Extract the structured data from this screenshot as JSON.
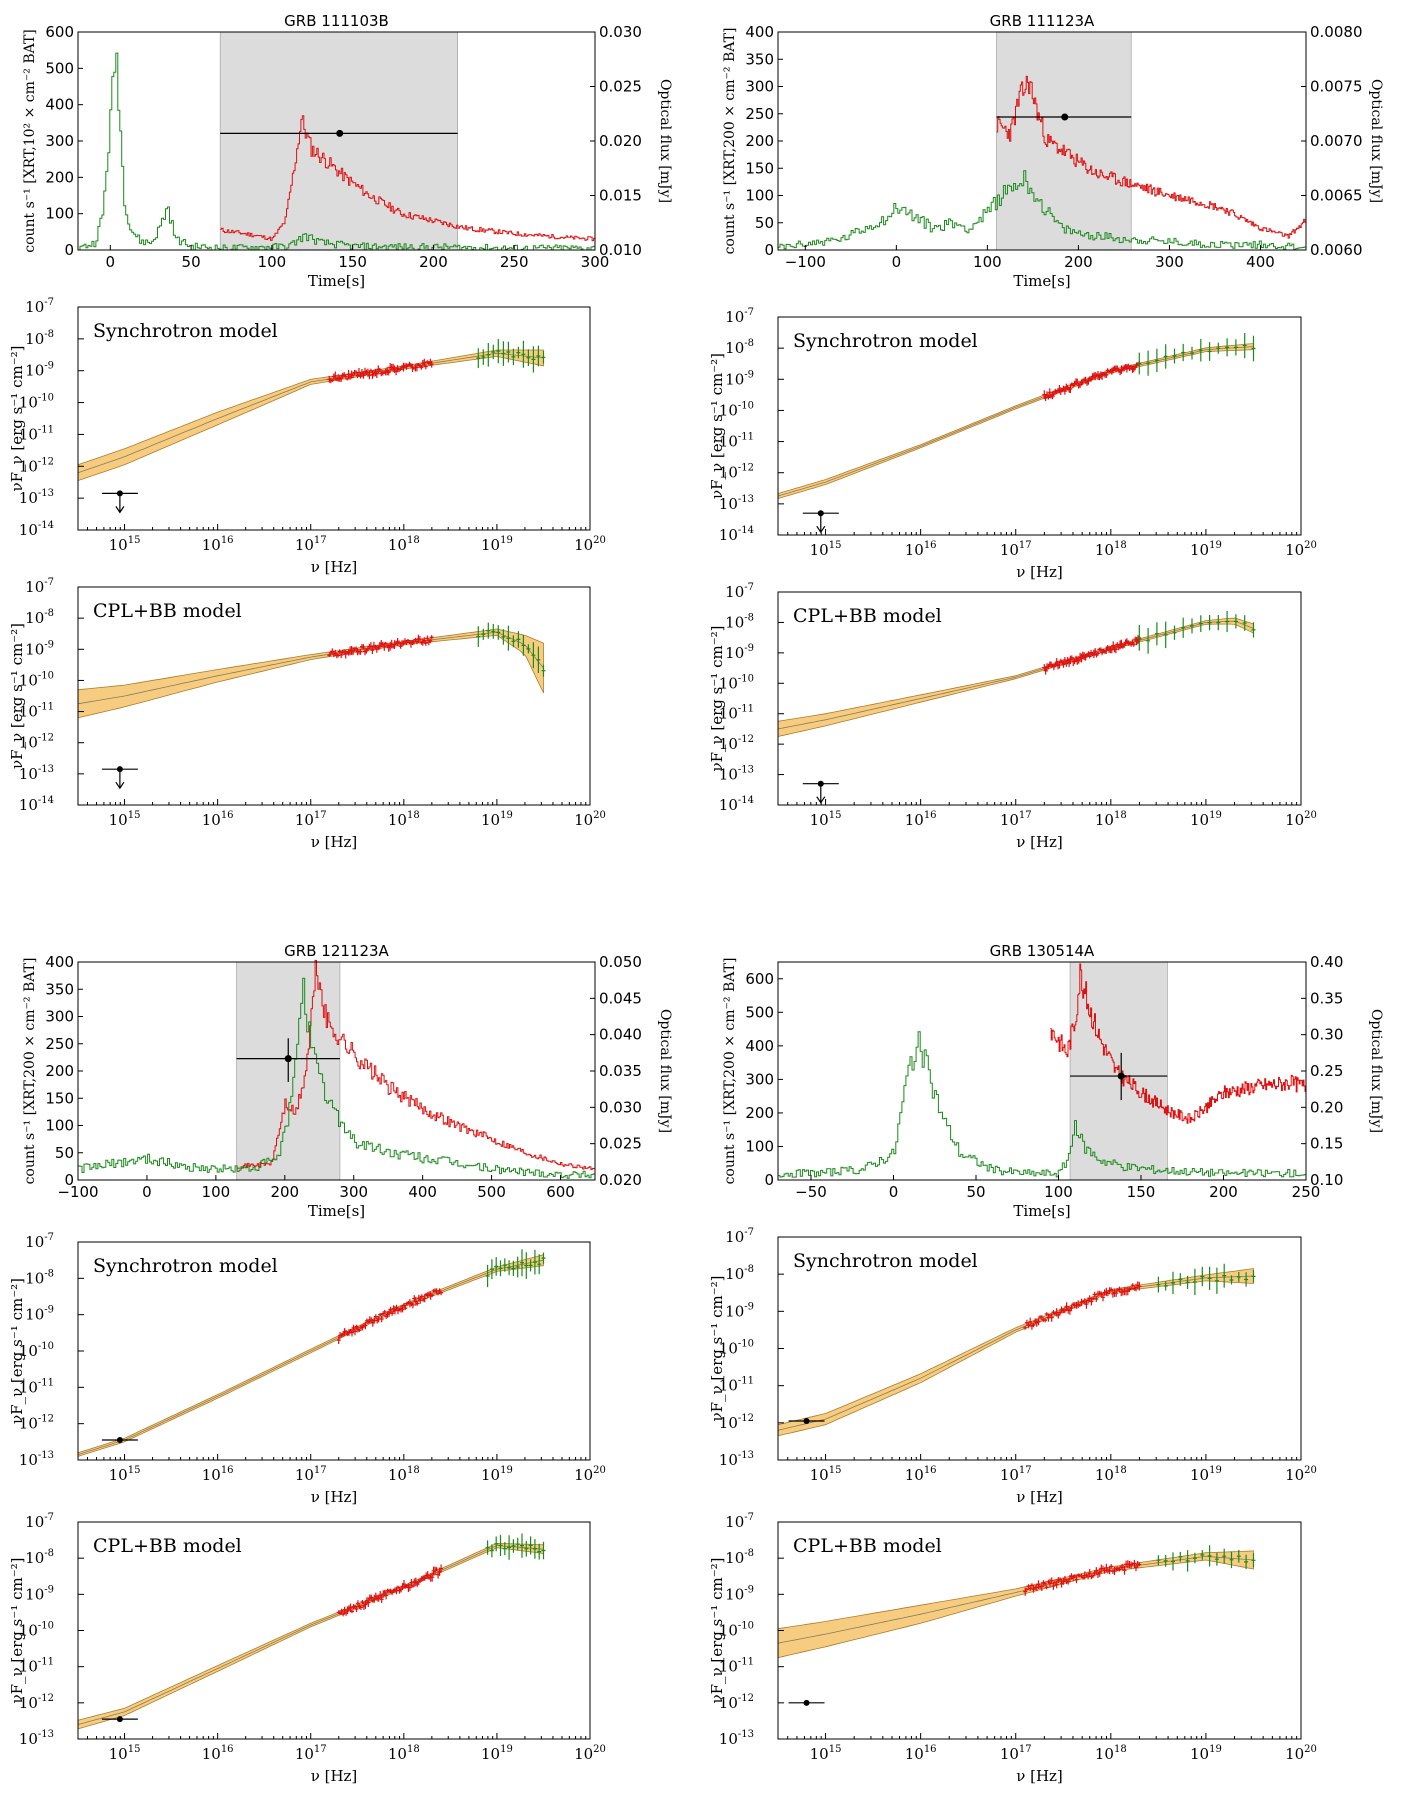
{
  "colors": {
    "xrt": "#e01010",
    "bat": "#1a8a1a",
    "band": "#f5c46a",
    "band_edge": "#b07a2a",
    "shade": "#dcdcdc"
  },
  "tick_labels": {
    "exp": [
      "-14",
      "-13",
      "-12",
      "-11",
      "-10",
      "-9",
      "-8",
      "-7"
    ],
    "freq_exp": [
      "15",
      "16",
      "17",
      "18",
      "19",
      "20"
    ]
  },
  "chart_data": [
    {
      "type": "line",
      "kind": "lightcurve",
      "title": "GRB 111103B",
      "xlabel": "Time[s]",
      "ylabel": "count s⁻¹ [XRT,10² × cm⁻² BAT]",
      "ylabel2": "Optical flux [mJy]",
      "xlim": [
        -20,
        300
      ],
      "ylim": [
        0,
        600
      ],
      "ylim2": [
        0.01,
        0.03
      ],
      "xticks": [
        "0",
        "50",
        "100",
        "150",
        "200",
        "250",
        "300"
      ],
      "yticks": [
        "0",
        "100",
        "200",
        "300",
        "400",
        "500",
        "600"
      ],
      "y2ticks": [
        "0.010",
        "0.015",
        "0.020",
        "0.025",
        "0.030"
      ],
      "shaded_interval": [
        68,
        215
      ],
      "series": [
        {
          "role": "XRT",
          "x": [
            68,
            90,
            100,
            108,
            114,
            118,
            124,
            132,
            145,
            160,
            180,
            200,
            220,
            250,
            280,
            300
          ],
          "y": [
            55,
            40,
            30,
            80,
            240,
            360,
            280,
            250,
            200,
            150,
            100,
            80,
            60,
            45,
            35,
            30
          ]
        },
        {
          "role": "BAT",
          "x": [
            -20,
            -10,
            -5,
            0,
            3,
            5,
            8,
            12,
            18,
            25,
            30,
            35,
            40,
            50,
            70,
            110,
            120,
            130,
            150,
            200,
            250,
            300
          ],
          "y": [
            5,
            20,
            100,
            380,
            560,
            400,
            150,
            60,
            25,
            20,
            60,
            120,
            30,
            10,
            5,
            10,
            40,
            20,
            10,
            8,
            5,
            5
          ]
        }
      ],
      "optical_point": {
        "x": 142,
        "y": 0.0207,
        "x_err": [
          68,
          215
        ]
      }
    },
    {
      "type": "line",
      "kind": "lightcurve",
      "title": "GRB 111123A",
      "xlabel": "Time[s]",
      "ylabel": "count s⁻¹ [XRT,200 × cm⁻² BAT]",
      "ylabel2": "Optical flux [mJy]",
      "xlim": [
        -130,
        450
      ],
      "ylim": [
        0,
        400
      ],
      "ylim2": [
        0.006,
        0.008
      ],
      "xticks": [
        "−100",
        "0",
        "100",
        "200",
        "300",
        "400"
      ],
      "yticks": [
        "0",
        "50",
        "100",
        "150",
        "200",
        "250",
        "300",
        "350",
        "400"
      ],
      "y2ticks": [
        "0.0060",
        "0.0065",
        "0.0070",
        "0.0075",
        "0.0080"
      ],
      "shaded_interval": [
        110,
        258
      ],
      "series": [
        {
          "role": "XRT",
          "x": [
            110,
            125,
            135,
            145,
            155,
            165,
            180,
            200,
            220,
            250,
            280,
            300,
            330,
            360,
            400,
            430,
            450
          ],
          "y": [
            230,
            215,
            280,
            310,
            250,
            200,
            185,
            160,
            140,
            125,
            110,
            100,
            90,
            75,
            40,
            25,
            55
          ]
        },
        {
          "role": "BAT",
          "x": [
            -130,
            -60,
            -10,
            0,
            20,
            40,
            60,
            80,
            100,
            120,
            140,
            160,
            180,
            200,
            250,
            300,
            350,
            400,
            450
          ],
          "y": [
            5,
            20,
            60,
            80,
            60,
            40,
            50,
            40,
            70,
            110,
            130,
            80,
            40,
            30,
            20,
            15,
            10,
            10,
            5
          ]
        }
      ],
      "optical_point": {
        "x": 185,
        "y": 0.00722,
        "x_err": [
          110,
          258
        ]
      }
    },
    {
      "type": "line",
      "kind": "sed",
      "label": "Synchrotron model",
      "xlabel": "ν [Hz]",
      "ylabel": "νF_ν [erg s⁻¹ cm⁻²]",
      "xlog": [
        14.5,
        20
      ],
      "ylog": [
        -14,
        -7
      ],
      "model": {
        "x": [
          14.5,
          15,
          16,
          17,
          18,
          19,
          19.5
        ],
        "y": [
          -12.2,
          -11.7,
          -10.5,
          -9.35,
          -8.9,
          -8.45,
          -8.6
        ],
        "width": [
          0.25,
          0.25,
          0.2,
          0.08,
          0.05,
          0.1,
          0.25
        ]
      },
      "xrt_range": [
        17.2,
        18.3
      ],
      "bat_range": [
        18.8,
        19.5
      ],
      "upper_limit": {
        "x": 14.95,
        "y": -12.85
      }
    },
    {
      "type": "line",
      "kind": "sed",
      "label": "Synchrotron model",
      "xlabel": "ν [Hz]",
      "ylabel": "νF_ν [erg s⁻¹ cm⁻²]",
      "xlog": [
        14.5,
        20
      ],
      "ylog": [
        -14,
        -7
      ],
      "model": {
        "x": [
          14.5,
          15,
          16,
          17,
          18,
          19,
          19.5
        ],
        "y": [
          -12.75,
          -12.3,
          -11.15,
          -9.9,
          -8.75,
          -8.05,
          -7.95
        ],
        "width": [
          0.08,
          0.08,
          0.05,
          0.05,
          0.05,
          0.06,
          0.1
        ]
      },
      "xrt_range": [
        17.3,
        18.3
      ],
      "bat_range": [
        18.3,
        19.5
      ],
      "upper_limit": {
        "x": 14.95,
        "y": -13.3
      }
    },
    {
      "type": "line",
      "kind": "sed",
      "label": "CPL+BB model",
      "xlabel": "ν [Hz]",
      "ylabel": "νF_ν [erg s⁻¹ cm⁻²]",
      "xlog": [
        14.5,
        20
      ],
      "ylog": [
        -14,
        -7
      ],
      "model": {
        "x": [
          14.5,
          15,
          16,
          17,
          18,
          19,
          19.3,
          19.5
        ],
        "y": [
          -10.75,
          -10.5,
          -9.85,
          -9.25,
          -8.8,
          -8.45,
          -8.85,
          -9.6
        ],
        "width": [
          0.45,
          0.35,
          0.2,
          0.08,
          0.05,
          0.1,
          0.3,
          0.8
        ]
      },
      "xrt_range": [
        17.2,
        18.3
      ],
      "bat_range": [
        18.8,
        19.5
      ],
      "upper_limit": {
        "x": 14.95,
        "y": -12.85
      }
    },
    {
      "type": "line",
      "kind": "sed",
      "label": "CPL+BB model",
      "xlabel": "ν [Hz]",
      "ylabel": "νF_ν [erg s⁻¹ cm⁻²]",
      "xlog": [
        14.5,
        20
      ],
      "ylog": [
        -14,
        -7
      ],
      "model": {
        "x": [
          14.5,
          15,
          16,
          17,
          18,
          19,
          19.3,
          19.5
        ],
        "y": [
          -11.5,
          -11.2,
          -10.5,
          -9.8,
          -8.85,
          -8.0,
          -7.95,
          -8.2
        ],
        "width": [
          0.25,
          0.2,
          0.12,
          0.05,
          0.05,
          0.06,
          0.1,
          0.15
        ]
      },
      "xrt_range": [
        17.3,
        18.3
      ],
      "bat_range": [
        18.3,
        19.5
      ],
      "upper_limit": {
        "x": 14.95,
        "y": -13.3
      }
    },
    {
      "type": "line",
      "kind": "lightcurve",
      "title": "GRB 121123A",
      "xlabel": "Time[s]",
      "ylabel": "count s⁻¹ [XRT,200 × cm⁻² BAT]",
      "ylabel2": "Optical flux [mJy]",
      "xlim": [
        -100,
        650
      ],
      "ylim": [
        0,
        400
      ],
      "ylim2": [
        0.02,
        0.05
      ],
      "xticks": [
        "−100",
        "0",
        "100",
        "200",
        "300",
        "400",
        "500",
        "600"
      ],
      "yticks": [
        "0",
        "50",
        "100",
        "150",
        "200",
        "250",
        "300",
        "350",
        "400"
      ],
      "y2ticks": [
        "0.020",
        "0.025",
        "0.030",
        "0.035",
        "0.040",
        "0.045",
        "0.050"
      ],
      "shaded_interval": [
        130,
        280
      ],
      "series": [
        {
          "role": "XRT",
          "x": [
            130,
            180,
            200,
            215,
            230,
            245,
            260,
            280,
            300,
            350,
            400,
            450,
            500,
            550,
            600,
            650
          ],
          "y": [
            25,
            30,
            140,
            120,
            200,
            390,
            290,
            260,
            230,
            170,
            130,
            100,
            75,
            50,
            30,
            20
          ]
        },
        {
          "role": "BAT",
          "x": [
            -100,
            -50,
            0,
            50,
            100,
            150,
            190,
            210,
            225,
            235,
            245,
            260,
            280,
            300,
            350,
            400,
            450,
            500,
            550,
            600,
            650
          ],
          "y": [
            20,
            30,
            40,
            25,
            20,
            20,
            40,
            150,
            380,
            260,
            200,
            150,
            110,
            70,
            50,
            40,
            30,
            20,
            15,
            10,
            10
          ]
        }
      ],
      "optical_point": {
        "x": 205,
        "y": 0.0367,
        "x_err": [
          130,
          280
        ],
        "y_err": [
          0.0335,
          0.0395
        ]
      }
    },
    {
      "type": "line",
      "kind": "lightcurve",
      "title": "GRB 130514A",
      "xlabel": "Time[s]",
      "ylabel": "count s⁻¹ [XRT,200 × cm⁻² BAT]",
      "ylabel2": "Optical flux [mJy]",
      "xlim": [
        -70,
        250
      ],
      "ylim": [
        0,
        650
      ],
      "ylim2": [
        0.1,
        0.4
      ],
      "xticks": [
        "−50",
        "0",
        "50",
        "100",
        "150",
        "200",
        "250"
      ],
      "yticks": [
        "0",
        "100",
        "200",
        "300",
        "400",
        "500",
        "600"
      ],
      "y2ticks": [
        "0.10",
        "0.15",
        "0.20",
        "0.25",
        "0.30",
        "0.35",
        "0.40"
      ],
      "shaded_interval": [
        107,
        166
      ],
      "series": [
        {
          "role": "XRT",
          "x": [
            95,
            105,
            110,
            113,
            118,
            125,
            135,
            150,
            165,
            180,
            185,
            200,
            220,
            240,
            250
          ],
          "y": [
            450,
            380,
            480,
            620,
            520,
            420,
            320,
            260,
            210,
            180,
            200,
            260,
            280,
            290,
            280
          ]
        },
        {
          "role": "BAT",
          "x": [
            -70,
            -50,
            -20,
            0,
            5,
            10,
            15,
            20,
            25,
            30,
            40,
            60,
            80,
            100,
            105,
            110,
            115,
            125,
            140,
            160,
            200,
            250
          ],
          "y": [
            20,
            20,
            30,
            80,
            230,
            360,
            400,
            330,
            250,
            180,
            80,
            30,
            20,
            20,
            60,
            160,
            100,
            60,
            40,
            30,
            20,
            20
          ]
        }
      ],
      "optical_point": {
        "x": 138,
        "y": 0.243,
        "x_err": [
          107,
          166
        ],
        "y_err": [
          0.21,
          0.275
        ]
      }
    },
    {
      "type": "line",
      "kind": "sed",
      "label": "Synchrotron model",
      "xlabel": "ν [Hz]",
      "ylabel": "νF_ν [erg s⁻¹ cm⁻²]",
      "xlog": [
        14.5,
        20
      ],
      "ylog": [
        -13,
        -7
      ],
      "model": {
        "x": [
          14.5,
          15,
          16,
          17,
          18,
          19,
          19.5
        ],
        "y": [
          -12.85,
          -12.45,
          -11.25,
          -10.0,
          -8.75,
          -7.75,
          -7.5
        ],
        "width": [
          0.05,
          0.05,
          0.05,
          0.05,
          0.04,
          0.06,
          0.15
        ]
      },
      "xrt_range": [
        17.3,
        18.4
      ],
      "bat_range": [
        18.9,
        19.5
      ],
      "point": {
        "x": 14.95,
        "y": -12.45
      }
    },
    {
      "type": "line",
      "kind": "sed",
      "label": "Synchrotron model",
      "xlabel": "ν [Hz]",
      "ylabel": "νF_ν [erg s⁻¹ cm⁻²]",
      "xlog": [
        14.5,
        20
      ],
      "ylog": [
        -13,
        -7
      ],
      "model": {
        "x": [
          14.5,
          15,
          16,
          17,
          18,
          19,
          19.5
        ],
        "y": [
          -12.2,
          -11.9,
          -10.8,
          -9.5,
          -8.45,
          -8.1,
          -8.05
        ],
        "width": [
          0.15,
          0.15,
          0.12,
          0.06,
          0.04,
          0.08,
          0.2
        ]
      },
      "xrt_range": [
        17.1,
        18.3
      ],
      "bat_range": [
        18.5,
        19.5
      ],
      "point": {
        "x": 14.8,
        "y": -11.95
      }
    },
    {
      "type": "line",
      "kind": "sed",
      "label": "CPL+BB model",
      "xlabel": "ν [Hz]",
      "ylabel": "νF_ν [erg s⁻¹ cm⁻²]",
      "xlog": [
        14.5,
        20
      ],
      "ylog": [
        -13,
        -7
      ],
      "model": {
        "x": [
          14.5,
          15,
          16,
          17,
          18,
          19,
          19.5
        ],
        "y": [
          -12.6,
          -12.25,
          -11.05,
          -9.85,
          -8.8,
          -7.65,
          -7.75
        ],
        "width": [
          0.12,
          0.1,
          0.08,
          0.05,
          0.04,
          0.06,
          0.12
        ]
      },
      "xrt_range": [
        17.3,
        18.4
      ],
      "bat_range": [
        18.9,
        19.5
      ],
      "point": {
        "x": 14.95,
        "y": -12.45
      }
    },
    {
      "type": "line",
      "kind": "sed",
      "label": "CPL+BB model",
      "xlabel": "ν [Hz]",
      "ylabel": "νF_ν [erg s⁻¹ cm⁻²]",
      "xlog": [
        14.5,
        20
      ],
      "ylog": [
        -13,
        -7
      ],
      "model": {
        "x": [
          14.5,
          15,
          16,
          17,
          18,
          19,
          19.5
        ],
        "y": [
          -10.35,
          -10.1,
          -9.55,
          -8.95,
          -8.3,
          -7.95,
          -8.05
        ],
        "width": [
          0.4,
          0.35,
          0.25,
          0.1,
          0.06,
          0.1,
          0.25
        ]
      },
      "xrt_range": [
        17.1,
        18.3
      ],
      "bat_range": [
        18.5,
        19.5
      ],
      "point": {
        "x": 14.8,
        "y": -12.0
      }
    }
  ]
}
